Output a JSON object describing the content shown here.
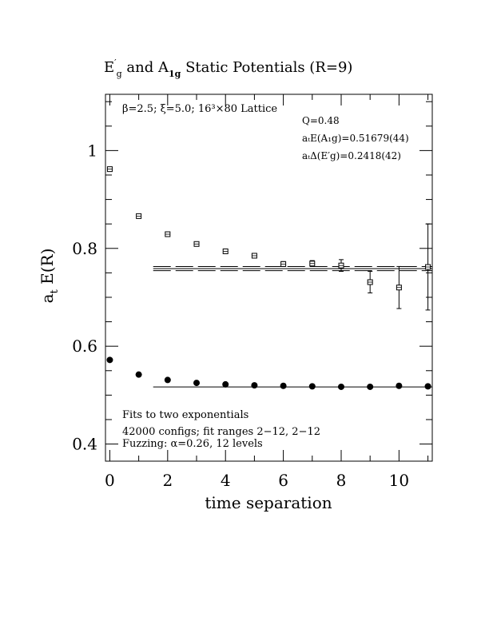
{
  "chart_data": {
    "type": "scatter",
    "title": {
      "part1": "E",
      "part1_sup": "′",
      "part1_sub": "g",
      "middle": " and A",
      "part2_sub": "1g",
      "tail": " Static Potentials (R=9)"
    },
    "xlabel": "time separation",
    "ylabel": {
      "main": "a",
      "sub": "t",
      "rest": " E(R)"
    },
    "xlim": [
      -0.15,
      11.15
    ],
    "ylim": [
      0.365,
      1.115
    ],
    "xticks": [
      0,
      2,
      4,
      6,
      8,
      10
    ],
    "xtick_labels": [
      "0",
      "2",
      "4",
      "6",
      "8",
      "10"
    ],
    "yticks": [
      0.4,
      0.6,
      0.8,
      1.0
    ],
    "ytick_labels": [
      "0.4",
      "0.6",
      "0.8",
      "1"
    ],
    "annotations_top": {
      "lattice": "β=2.5; ξ=5.0; 16³×80 Lattice",
      "q": "Q=0.48",
      "energy": "aₜE(A₁g)=0.51679(44)",
      "delta": "aₜΔ(E′g)=0.2418(42)"
    },
    "annotations_bottom": {
      "line1": "Fits to two exponentials",
      "line2": "42000 configs; fit ranges 2−12, 2−12",
      "line3": "Fuzzing: α=0.26, 12 levels"
    },
    "series": [
      {
        "marker": "filled-circle",
        "points": [
          {
            "x": 0,
            "y": 0.572,
            "err": 0.003
          },
          {
            "x": 1,
            "y": 0.542,
            "err": 0.002
          },
          {
            "x": 2,
            "y": 0.531,
            "err": 0.002
          },
          {
            "x": 3,
            "y": 0.525,
            "err": 0.002
          },
          {
            "x": 4,
            "y": 0.522,
            "err": 0.002
          },
          {
            "x": 5,
            "y": 0.52,
            "err": 0.002
          },
          {
            "x": 6,
            "y": 0.519,
            "err": 0.002
          },
          {
            "x": 7,
            "y": 0.518,
            "err": 0.002
          },
          {
            "x": 8,
            "y": 0.517,
            "err": 0.002
          },
          {
            "x": 9,
            "y": 0.517,
            "err": 0.002
          },
          {
            "x": 10,
            "y": 0.519,
            "err": 0.003
          },
          {
            "x": 11,
            "y": 0.518,
            "err": 0.004
          }
        ],
        "fit": {
          "x_from": 1.5,
          "x_to": 11.15,
          "y": 0.51679,
          "band": [
            0.5164,
            0.5172
          ]
        }
      },
      {
        "marker": "open-square",
        "points": [
          {
            "x": 0,
            "y": 0.962,
            "err": 0.003
          },
          {
            "x": 1,
            "y": 0.866,
            "err": 0.003
          },
          {
            "x": 2,
            "y": 0.829,
            "err": 0.003
          },
          {
            "x": 3,
            "y": 0.809,
            "err": 0.003
          },
          {
            "x": 4,
            "y": 0.794,
            "err": 0.003
          },
          {
            "x": 5,
            "y": 0.785,
            "err": 0.004
          },
          {
            "x": 6,
            "y": 0.768,
            "err": 0.005
          },
          {
            "x": 7,
            "y": 0.769,
            "err": 0.006
          },
          {
            "x": 8,
            "y": 0.765,
            "err": 0.012
          },
          {
            "x": 9,
            "y": 0.731,
            "err": 0.022
          },
          {
            "x": 10,
            "y": 0.72,
            "err": 0.043
          },
          {
            "x": 11,
            "y": 0.762,
            "err": 0.088
          }
        ],
        "fit": {
          "x_from": 1.5,
          "x_to": 11.15,
          "y": 0.7586,
          "band": [
            0.7544,
            0.7628
          ]
        }
      }
    ]
  }
}
